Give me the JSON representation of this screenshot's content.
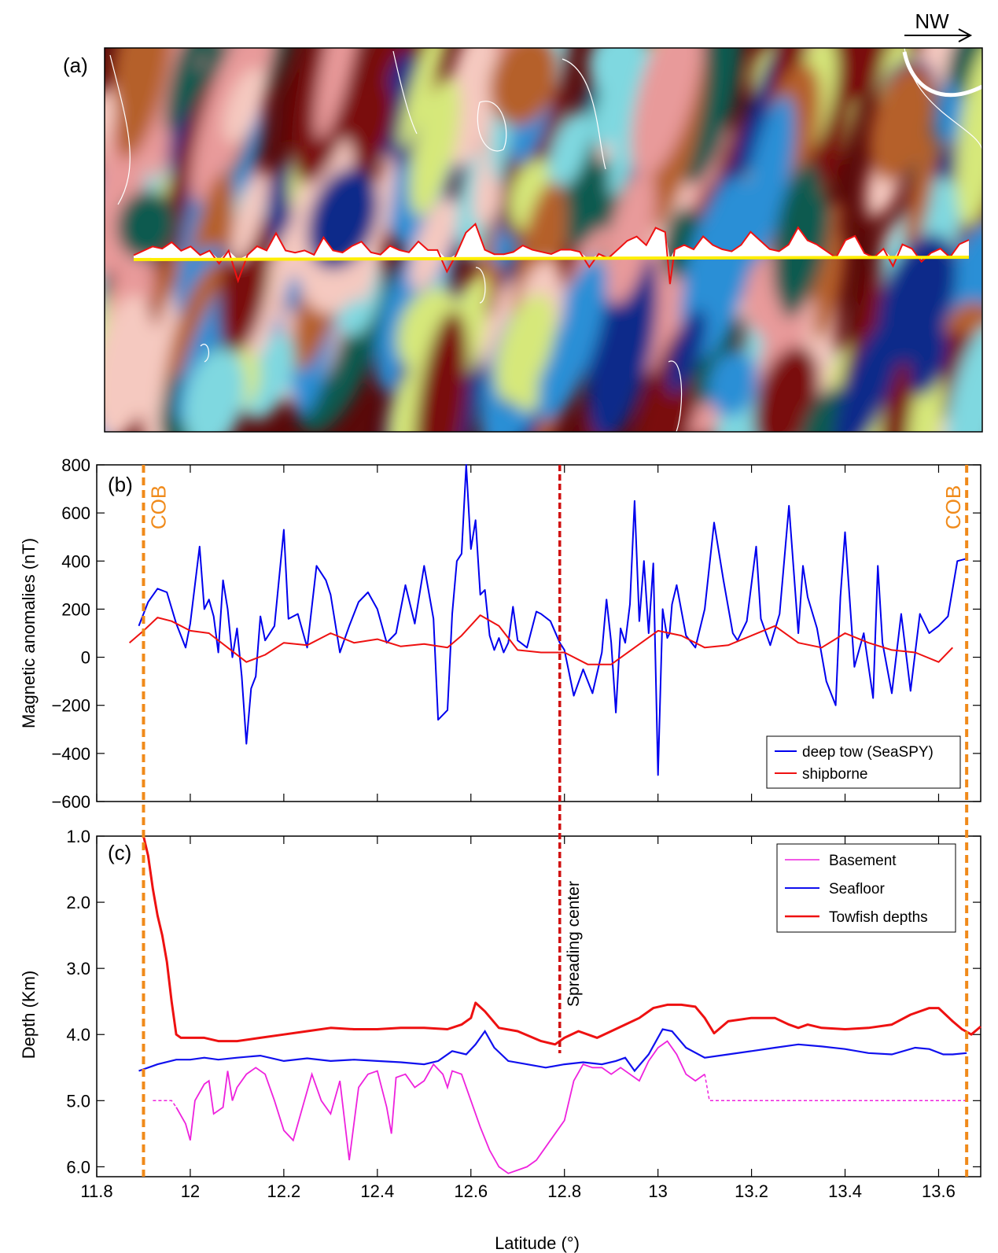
{
  "figure": {
    "direction_label": "NW",
    "panel_a_label": "(a)",
    "panel_b_label": "(b)",
    "panel_c_label": "(c)",
    "spreading_label": "Spreading center"
  },
  "colors": {
    "deep_tow": "#0000ee",
    "shipborne": "#ee1111",
    "basement": "#ee22dd",
    "seafloor": "#1010ee",
    "towfish": "#ee1111",
    "cob_line": "#f08a1a",
    "spreading_line": "#d01010",
    "track": "#ffee00"
  },
  "chart_data": [
    {
      "type": "line",
      "panel": "b",
      "xlabel": "",
      "ylabel": "Magnetic anomalies (nT)",
      "xlim": [
        11.8,
        13.69
      ],
      "ylim": [
        -600,
        800
      ],
      "yticks": [
        "800",
        "600",
        "400",
        "200",
        "0",
        "−200",
        "−400",
        "−600"
      ],
      "ytick_values": [
        800,
        600,
        400,
        200,
        0,
        -200,
        -400,
        -600
      ],
      "annotations": [
        {
          "text": "COB",
          "x": 11.9,
          "kind": "cob"
        },
        {
          "text": "COB",
          "x": 13.66,
          "kind": "cob"
        },
        {
          "text": "",
          "x": 12.79,
          "kind": "spreading"
        }
      ],
      "legend": {
        "position": "bottom-right"
      },
      "series": [
        {
          "name": "deep tow (SeaSPY)",
          "x": [
            11.89,
            11.91,
            11.93,
            11.95,
            11.97,
            11.99,
            12.0,
            12.02,
            12.03,
            12.04,
            12.05,
            12.06,
            12.07,
            12.08,
            12.09,
            12.1,
            12.11,
            12.12,
            12.13,
            12.14,
            12.15,
            12.16,
            12.18,
            12.2,
            12.21,
            12.23,
            12.25,
            12.27,
            12.29,
            12.3,
            12.32,
            12.34,
            12.36,
            12.38,
            12.4,
            12.42,
            12.44,
            12.46,
            12.48,
            12.5,
            12.52,
            12.53,
            12.55,
            12.56,
            12.57,
            12.58,
            12.59,
            12.6,
            12.61,
            12.62,
            12.63,
            12.64,
            12.65,
            12.66,
            12.67,
            12.68,
            12.69,
            12.7,
            12.72,
            12.74,
            12.75,
            12.77,
            12.79,
            12.8,
            12.82,
            12.84,
            12.86,
            12.88,
            12.89,
            12.9,
            12.91,
            12.92,
            12.93,
            12.94,
            12.95,
            12.96,
            12.97,
            12.98,
            12.99,
            13.0,
            13.01,
            13.02,
            13.025,
            13.03,
            13.04,
            13.06,
            13.08,
            13.1,
            13.12,
            13.14,
            13.16,
            13.17,
            13.19,
            13.21,
            13.22,
            13.24,
            13.26,
            13.28,
            13.3,
            13.31,
            13.32,
            13.34,
            13.36,
            13.38,
            13.39,
            13.4,
            13.42,
            13.44,
            13.46,
            13.47,
            13.48,
            13.5,
            13.52,
            13.54,
            13.56,
            13.58,
            13.6,
            13.62,
            13.64,
            13.66
          ],
          "y": [
            130,
            230,
            285,
            270,
            140,
            40,
            140,
            460,
            200,
            240,
            170,
            20,
            320,
            200,
            0,
            120,
            -80,
            -360,
            -130,
            -80,
            170,
            70,
            130,
            530,
            160,
            180,
            40,
            380,
            320,
            260,
            20,
            130,
            230,
            270,
            200,
            60,
            100,
            300,
            140,
            380,
            160,
            -260,
            -220,
            180,
            400,
            430,
            800,
            450,
            570,
            260,
            280,
            90,
            30,
            80,
            20,
            60,
            210,
            70,
            40,
            190,
            180,
            150,
            60,
            30,
            -160,
            -50,
            -150,
            20,
            240,
            60,
            -230,
            120,
            60,
            220,
            650,
            150,
            400,
            100,
            390,
            -490,
            200,
            80,
            100,
            220,
            300,
            90,
            40,
            200,
            560,
            320,
            100,
            70,
            150,
            460,
            160,
            50,
            180,
            630,
            100,
            380,
            250,
            120,
            -100,
            -200,
            250,
            520,
            -40,
            100,
            -170,
            380,
            60,
            -150,
            180,
            -140,
            180,
            100,
            130,
            170,
            400,
            410
          ],
          "color": "#0000ee"
        },
        {
          "name": "shipborne",
          "x": [
            11.87,
            11.9,
            11.93,
            11.96,
            12.0,
            12.04,
            12.08,
            12.12,
            12.16,
            12.2,
            12.25,
            12.3,
            12.35,
            12.4,
            12.45,
            12.5,
            12.55,
            12.58,
            12.62,
            12.66,
            12.7,
            12.75,
            12.8,
            12.85,
            12.9,
            12.95,
            13.0,
            13.05,
            13.1,
            13.15,
            13.2,
            13.25,
            13.3,
            13.35,
            13.4,
            13.45,
            13.5,
            13.55,
            13.6,
            13.63
          ],
          "y": [
            60,
            110,
            165,
            150,
            110,
            100,
            40,
            -20,
            10,
            60,
            50,
            100,
            60,
            75,
            45,
            55,
            40,
            90,
            175,
            130,
            30,
            20,
            20,
            -30,
            -30,
            40,
            110,
            90,
            40,
            50,
            90,
            130,
            60,
            40,
            100,
            60,
            30,
            20,
            -20,
            40
          ],
          "color": "#ee1111"
        }
      ]
    },
    {
      "type": "line",
      "panel": "c",
      "xlabel": "Latitude (°)",
      "ylabel": "Depth (Km)",
      "xlim": [
        11.8,
        13.69
      ],
      "ylim": [
        1.0,
        6.15
      ],
      "inverted_y": true,
      "yticks": [
        "1.0",
        "2.0",
        "3.0",
        "4.0",
        "5.0",
        "6.0"
      ],
      "ytick_values": [
        1.0,
        2.0,
        3.0,
        4.0,
        5.0,
        6.0
      ],
      "xticks": [
        "11.8",
        "12",
        "12.2",
        "12.4",
        "12.6",
        "12.8",
        "13",
        "13.2",
        "13.4",
        "13.6"
      ],
      "xtick_values": [
        11.8,
        12.0,
        12.2,
        12.4,
        12.6,
        12.8,
        13.0,
        13.2,
        13.4,
        13.6
      ],
      "legend": {
        "position": "top-right"
      },
      "series": [
        {
          "name": "Basement",
          "x": [
            11.97,
            11.99,
            12.0,
            12.01,
            12.03,
            12.04,
            12.05,
            12.07,
            12.08,
            12.09,
            12.1,
            12.12,
            12.14,
            12.16,
            12.18,
            12.2,
            12.22,
            12.24,
            12.26,
            12.28,
            12.3,
            12.32,
            12.34,
            12.36,
            12.38,
            12.4,
            12.42,
            12.43,
            12.44,
            12.46,
            12.48,
            12.5,
            12.52,
            12.54,
            12.55,
            12.56,
            12.58,
            12.6,
            12.62,
            12.64,
            12.66,
            12.68,
            12.7,
            12.72,
            12.74,
            12.76,
            12.78,
            12.8,
            12.82,
            12.84,
            12.86,
            12.88,
            12.9,
            12.92,
            12.94,
            12.96,
            12.98,
            13.0,
            13.02,
            13.04,
            13.06,
            13.08,
            13.1
          ],
          "y": [
            5.1,
            5.35,
            5.6,
            5.0,
            4.75,
            4.7,
            5.2,
            5.1,
            4.55,
            5.0,
            4.8,
            4.6,
            4.5,
            4.6,
            5.0,
            5.45,
            5.6,
            5.1,
            4.6,
            5.0,
            5.2,
            4.7,
            5.9,
            4.8,
            4.6,
            4.55,
            5.1,
            5.5,
            4.65,
            4.6,
            4.8,
            4.7,
            4.45,
            4.6,
            4.8,
            4.55,
            4.6,
            5.0,
            5.4,
            5.75,
            6.0,
            6.1,
            6.05,
            6.0,
            5.9,
            5.7,
            5.5,
            5.3,
            4.7,
            4.45,
            4.5,
            4.5,
            4.6,
            4.5,
            4.6,
            4.7,
            4.4,
            4.2,
            4.1,
            4.3,
            4.6,
            4.7,
            4.6
          ],
          "dashed_x": [
            11.92,
            11.96,
            11.97
          ],
          "dashed_y": [
            5.0,
            5.0,
            5.1
          ],
          "dashed2_x": [
            13.1,
            13.11,
            13.3,
            13.5,
            13.66
          ],
          "dashed2_y": [
            4.6,
            5.0,
            5.0,
            5.0,
            5.0
          ],
          "color": "#ee22dd"
        },
        {
          "name": "Seafloor",
          "x": [
            11.89,
            11.93,
            11.97,
            12.0,
            12.03,
            12.06,
            12.1,
            12.15,
            12.2,
            12.25,
            12.3,
            12.35,
            12.4,
            12.45,
            12.5,
            12.53,
            12.56,
            12.59,
            12.61,
            12.63,
            12.65,
            12.68,
            12.72,
            12.76,
            12.8,
            12.84,
            12.88,
            12.91,
            12.93,
            12.95,
            12.98,
            13.01,
            13.03,
            13.06,
            13.1,
            13.15,
            13.2,
            13.25,
            13.3,
            13.35,
            13.4,
            13.45,
            13.5,
            13.55,
            13.58,
            13.61,
            13.63,
            13.66
          ],
          "y": [
            4.55,
            4.45,
            4.38,
            4.38,
            4.35,
            4.38,
            4.35,
            4.32,
            4.4,
            4.36,
            4.4,
            4.38,
            4.4,
            4.42,
            4.45,
            4.4,
            4.25,
            4.3,
            4.15,
            3.95,
            4.2,
            4.4,
            4.45,
            4.5,
            4.45,
            4.42,
            4.45,
            4.4,
            4.35,
            4.55,
            4.3,
            3.92,
            3.95,
            4.2,
            4.35,
            4.3,
            4.25,
            4.2,
            4.15,
            4.18,
            4.22,
            4.28,
            4.3,
            4.2,
            4.22,
            4.3,
            4.3,
            4.28
          ],
          "color": "#1010ee"
        },
        {
          "name": "Towfish depths",
          "x": [
            11.9,
            11.91,
            11.92,
            11.93,
            11.94,
            11.95,
            11.96,
            11.97,
            11.98,
            12.0,
            12.03,
            12.06,
            12.1,
            12.15,
            12.2,
            12.25,
            12.3,
            12.35,
            12.4,
            12.45,
            12.5,
            12.55,
            12.58,
            12.6,
            12.61,
            12.63,
            12.66,
            12.7,
            12.75,
            12.78,
            12.8,
            12.83,
            12.87,
            12.9,
            12.93,
            12.96,
            12.99,
            13.02,
            13.05,
            13.08,
            13.1,
            13.12,
            13.15,
            13.2,
            13.25,
            13.28,
            13.3,
            13.32,
            13.35,
            13.4,
            13.45,
            13.5,
            13.54,
            13.58,
            13.6,
            13.63,
            13.65,
            13.67,
            13.69
          ],
          "y": [
            1.0,
            1.3,
            1.8,
            2.2,
            2.5,
            2.9,
            3.5,
            4.0,
            4.05,
            4.05,
            4.05,
            4.1,
            4.1,
            4.05,
            4.0,
            3.95,
            3.9,
            3.92,
            3.92,
            3.9,
            3.9,
            3.92,
            3.85,
            3.75,
            3.52,
            3.65,
            3.9,
            3.95,
            4.1,
            4.15,
            4.05,
            3.95,
            4.05,
            3.95,
            3.85,
            3.75,
            3.6,
            3.55,
            3.55,
            3.58,
            3.75,
            3.98,
            3.8,
            3.75,
            3.75,
            3.85,
            3.9,
            3.85,
            3.9,
            3.92,
            3.9,
            3.85,
            3.7,
            3.6,
            3.6,
            3.8,
            3.92,
            4.0,
            3.88
          ],
          "color": "#ee1111"
        }
      ]
    }
  ],
  "track_profile": {
    "x": [
      11.9,
      11.94,
      11.96,
      11.98,
      12.0,
      12.02,
      12.04,
      12.06,
      12.08,
      12.1,
      12.12,
      12.14,
      12.16,
      12.18,
      12.2,
      12.22,
      12.24,
      12.26,
      12.28,
      12.3,
      12.32,
      12.34,
      12.36,
      12.38,
      12.4,
      12.42,
      12.44,
      12.46,
      12.48,
      12.5,
      12.52,
      12.54,
      12.56,
      12.58,
      12.6,
      12.62,
      12.63,
      12.64,
      12.66,
      12.68,
      12.7,
      12.72,
      12.74,
      12.76,
      12.78,
      12.8,
      12.82,
      12.84,
      12.86,
      12.88,
      12.9,
      12.92,
      12.94,
      12.96,
      12.98,
      13.0,
      13.02,
      13.03,
      13.04,
      13.06,
      13.08,
      13.1,
      13.12,
      13.14,
      13.16,
      13.18,
      13.2,
      13.22,
      13.24,
      13.26,
      13.28,
      13.3,
      13.32,
      13.34,
      13.36,
      13.38,
      13.4,
      13.42,
      13.44,
      13.46,
      13.48,
      13.5,
      13.52,
      13.54,
      13.56,
      13.58,
      13.6,
      13.62,
      13.64,
      13.66
    ],
    "y": [
      0.1,
      0.3,
      0.25,
      0.4,
      0.2,
      0.3,
      0.1,
      0.2,
      -0.1,
      0.2,
      -0.5,
      0.1,
      0.3,
      0.2,
      0.6,
      0.2,
      0.15,
      0.2,
      0.1,
      0.5,
      0.2,
      0.15,
      0.3,
      0.4,
      0.15,
      0.1,
      0.3,
      0.2,
      0.15,
      0.4,
      0.2,
      0.2,
      -0.3,
      0.1,
      0.6,
      0.8,
      0.5,
      0.2,
      0.1,
      0.1,
      0.15,
      0.3,
      0.2,
      0.15,
      0.1,
      0.2,
      0.2,
      0.15,
      -0.2,
      0.1,
      0.0,
      0.2,
      0.4,
      0.5,
      0.3,
      0.7,
      0.6,
      -0.6,
      0.2,
      0.3,
      0.2,
      0.5,
      0.3,
      0.2,
      0.15,
      0.3,
      0.6,
      0.4,
      0.2,
      0.15,
      0.3,
      0.7,
      0.4,
      0.3,
      0.15,
      0.0,
      0.4,
      0.5,
      0.1,
      0.0,
      0.2,
      -0.2,
      0.3,
      0.2,
      -0.1,
      0.1,
      0.2,
      0.0,
      0.3,
      0.4
    ]
  }
}
